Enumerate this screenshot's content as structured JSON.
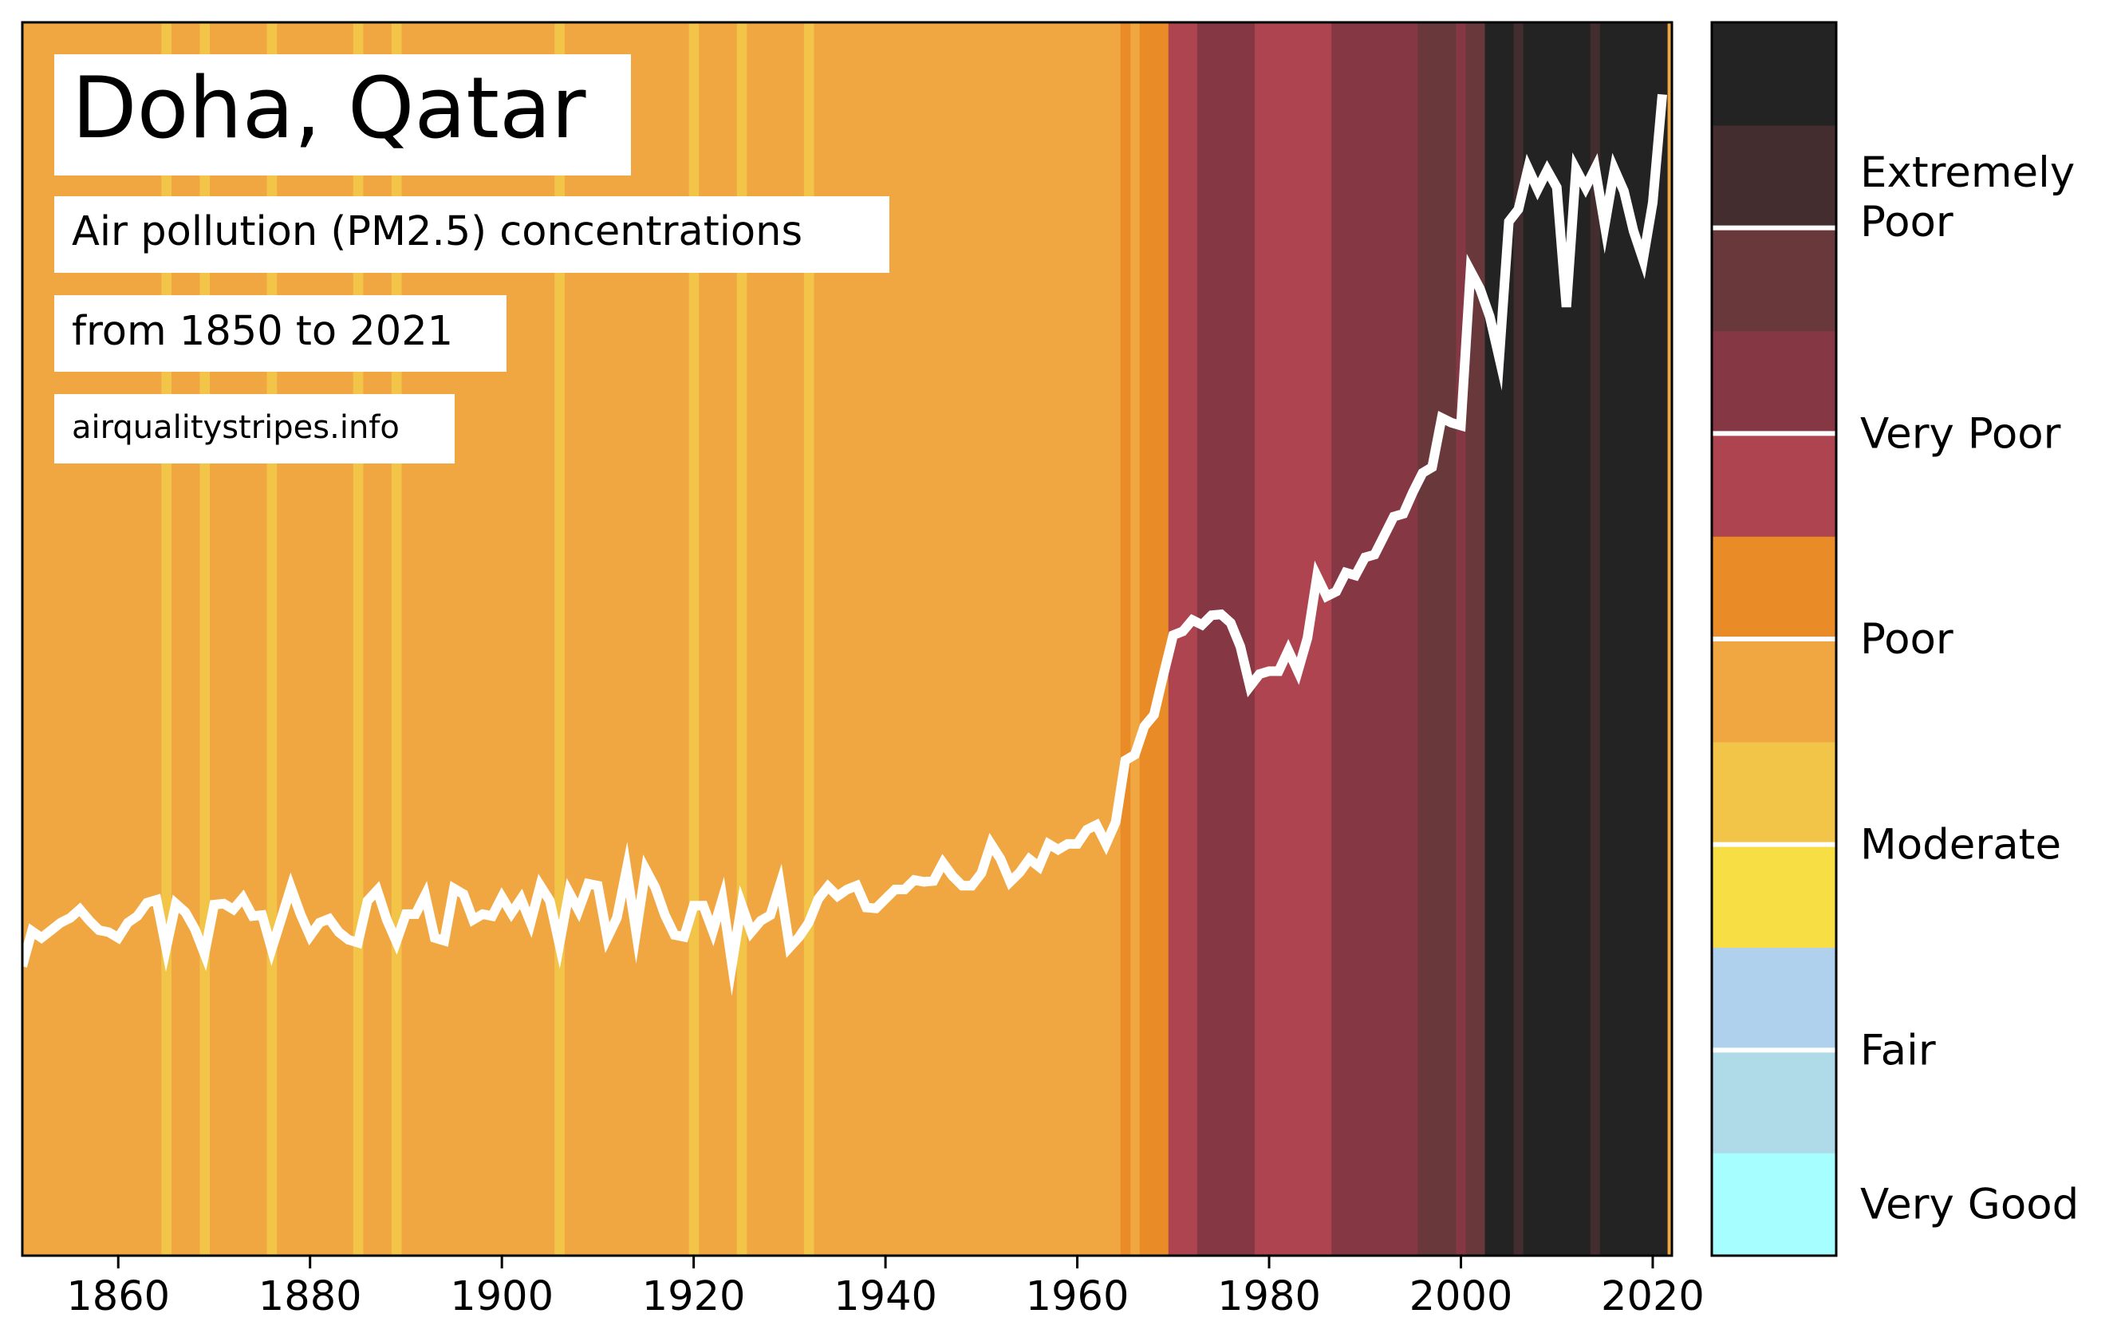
{
  "chart_data": {
    "type": "line",
    "title": "Doha, Qatar",
    "subtitle_line1": "Air pollution (PM2.5) concentrations",
    "subtitle_line2": "from 1850 to 2021",
    "source": "airqualitystripes.info",
    "xlim": [
      1850,
      2022
    ],
    "ylim": [
      0,
      130
    ],
    "x_ticks": [
      1860,
      1880,
      1900,
      1920,
      1940,
      1960,
      1980,
      2000,
      2020
    ],
    "y_axis_visible": false,
    "grid": false,
    "line_color": "#ffffff",
    "stripe_colors": {
      "moderate_high": "#f2c548",
      "poor_low": "#f0a742",
      "poor_high": "#e98b27",
      "very_poor_low": "#ad4450",
      "very_poor_high": "#853844",
      "extremely_poor_low": "#68383b",
      "extremely_poor_mid": "#432d2f",
      "extremely_poor_high": "#232323"
    },
    "stripes_default": "poor_low",
    "stripes": [
      {
        "year": 1865,
        "category": "moderate_high"
      },
      {
        "year": 1869,
        "category": "moderate_high"
      },
      {
        "year": 1876,
        "category": "moderate_high"
      },
      {
        "year": 1885,
        "category": "moderate_high"
      },
      {
        "year": 1889,
        "category": "moderate_high"
      },
      {
        "year": 1906,
        "category": "moderate_high"
      },
      {
        "year": 1920,
        "category": "moderate_high"
      },
      {
        "year": 1925,
        "category": "moderate_high"
      },
      {
        "year": 1932,
        "category": "moderate_high"
      },
      {
        "year": 1965,
        "category": "poor_high"
      },
      {
        "year": 1967,
        "category": "poor_high"
      },
      {
        "year": 1968,
        "category": "poor_high"
      },
      {
        "year": 1969,
        "category": "poor_high"
      },
      {
        "year": 1970,
        "category": "very_poor_low"
      },
      {
        "year": 1971,
        "category": "very_poor_low"
      },
      {
        "year": 1972,
        "category": "very_poor_low"
      },
      {
        "year": 1973,
        "category": "very_poor_high"
      },
      {
        "year": 1974,
        "category": "very_poor_high"
      },
      {
        "year": 1975,
        "category": "very_poor_high"
      },
      {
        "year": 1976,
        "category": "very_poor_high"
      },
      {
        "year": 1977,
        "category": "very_poor_high"
      },
      {
        "year": 1978,
        "category": "very_poor_high"
      },
      {
        "year": 1979,
        "category": "very_poor_low"
      },
      {
        "year": 1980,
        "category": "very_poor_low"
      },
      {
        "year": 1981,
        "category": "very_poor_low"
      },
      {
        "year": 1982,
        "category": "very_poor_low"
      },
      {
        "year": 1983,
        "category": "very_poor_low"
      },
      {
        "year": 1984,
        "category": "very_poor_low"
      },
      {
        "year": 1985,
        "category": "very_poor_low"
      },
      {
        "year": 1986,
        "category": "very_poor_low"
      },
      {
        "year": 1987,
        "category": "very_poor_high"
      },
      {
        "year": 1988,
        "category": "very_poor_high"
      },
      {
        "year": 1989,
        "category": "very_poor_high"
      },
      {
        "year": 1990,
        "category": "very_poor_high"
      },
      {
        "year": 1991,
        "category": "very_poor_high"
      },
      {
        "year": 1992,
        "category": "very_poor_high"
      },
      {
        "year": 1993,
        "category": "very_poor_high"
      },
      {
        "year": 1994,
        "category": "very_poor_high"
      },
      {
        "year": 1995,
        "category": "very_poor_high"
      },
      {
        "year": 1996,
        "category": "extremely_poor_low"
      },
      {
        "year": 1997,
        "category": "extremely_poor_low"
      },
      {
        "year": 1998,
        "category": "extremely_poor_low"
      },
      {
        "year": 1999,
        "category": "extremely_poor_low"
      },
      {
        "year": 2000,
        "category": "very_poor_high"
      },
      {
        "year": 2001,
        "category": "extremely_poor_low"
      },
      {
        "year": 2002,
        "category": "extremely_poor_low"
      },
      {
        "year": 2003,
        "category": "extremely_poor_high"
      },
      {
        "year": 2004,
        "category": "extremely_poor_high"
      },
      {
        "year": 2005,
        "category": "extremely_poor_high"
      },
      {
        "year": 2006,
        "category": "extremely_poor_mid"
      },
      {
        "year": 2007,
        "category": "extremely_poor_high"
      },
      {
        "year": 2008,
        "category": "extremely_poor_high"
      },
      {
        "year": 2009,
        "category": "extremely_poor_high"
      },
      {
        "year": 2010,
        "category": "extremely_poor_high"
      },
      {
        "year": 2011,
        "category": "extremely_poor_high"
      },
      {
        "year": 2012,
        "category": "extremely_poor_high"
      },
      {
        "year": 2013,
        "category": "extremely_poor_high"
      },
      {
        "year": 2014,
        "category": "extremely_poor_mid"
      },
      {
        "year": 2015,
        "category": "extremely_poor_high"
      },
      {
        "year": 2016,
        "category": "extremely_poor_high"
      },
      {
        "year": 2017,
        "category": "extremely_poor_high"
      },
      {
        "year": 2018,
        "category": "extremely_poor_high"
      },
      {
        "year": 2019,
        "category": "extremely_poor_high"
      },
      {
        "year": 2020,
        "category": "extremely_poor_high"
      },
      {
        "year": 2021,
        "category": "extremely_poor_high"
      }
    ],
    "series": [
      {
        "x": [
          1850,
          1851,
          1852,
          1853,
          1854,
          1855,
          1856,
          1857,
          1858,
          1859,
          1860,
          1861,
          1862,
          1863,
          1864,
          1865,
          1866,
          1867,
          1868,
          1869,
          1870,
          1871,
          1872,
          1873,
          1874,
          1875,
          1876,
          1877,
          1878,
          1879,
          1880,
          1881,
          1882,
          1883,
          1884,
          1885,
          1886,
          1887,
          1888,
          1889,
          1890,
          1891,
          1892,
          1893,
          1894,
          1895,
          1896,
          1897,
          1898,
          1899,
          1900,
          1901,
          1902,
          1903,
          1904,
          1905,
          1906,
          1907,
          1908,
          1909,
          1910,
          1911,
          1912,
          1913,
          1914,
          1915,
          1916,
          1917,
          1918,
          1919,
          1920,
          1921,
          1922,
          1923,
          1924,
          1925,
          1926,
          1927,
          1928,
          1929,
          1930,
          1931,
          1932,
          1933,
          1934,
          1935,
          1936,
          1937,
          1938,
          1939,
          1940,
          1941,
          1942,
          1943,
          1944,
          1945,
          1946,
          1947,
          1948,
          1949,
          1950,
          1951,
          1952,
          1953,
          1954,
          1955,
          1956,
          1957,
          1958,
          1959,
          1960,
          1961,
          1962,
          1963,
          1964,
          1965,
          1966,
          1967,
          1968,
          1969,
          1970,
          1971,
          1972,
          1973,
          1974,
          1975,
          1976,
          1977,
          1978,
          1979,
          1980,
          1981,
          1982,
          1983,
          1984,
          1985,
          1986,
          1987,
          1988,
          1989,
          1990,
          1991,
          1992,
          1993,
          1994,
          1995,
          1996,
          1997,
          1998,
          1999,
          2000,
          2001,
          2002,
          2003,
          2004,
          2005,
          2006,
          2007,
          2008,
          2009,
          2010,
          2011,
          2012,
          2013,
          2014,
          2015,
          2016,
          2017,
          2018,
          2019,
          2020,
          2021
        ],
        "y": [
          30.5,
          34.2,
          33.5,
          34.3,
          35.1,
          35.6,
          36.5,
          35.3,
          34.3,
          34.1,
          33.5,
          35.1,
          35.8,
          37.2,
          37.5,
          32.4,
          37.1,
          36.2,
          34.4,
          31.8,
          37.0,
          37.1,
          36.5,
          37.7,
          35.8,
          35.9,
          32.3,
          35.5,
          38.8,
          36.0,
          33.7,
          35.1,
          35.5,
          34.1,
          33.3,
          33.0,
          37.4,
          38.5,
          35.4,
          33.1,
          36.0,
          36.0,
          38.0,
          33.5,
          33.2,
          38.7,
          38.1,
          35.4,
          36.0,
          35.8,
          37.8,
          36.1,
          37.6,
          35.1,
          39.0,
          37.4,
          32.8,
          38.3,
          36.4,
          39.2,
          39.0,
          33.5,
          35.6,
          40.7,
          34.1,
          40.7,
          38.8,
          35.9,
          33.8,
          33.6,
          36.9,
          36.9,
          34.2,
          37.6,
          30.7,
          37.0,
          34.1,
          35.3,
          35.9,
          39.1,
          32.5,
          33.6,
          35.1,
          37.6,
          38.9,
          37.9,
          38.6,
          39.0,
          36.7,
          36.6,
          37.6,
          38.6,
          38.6,
          39.6,
          39.4,
          39.5,
          41.4,
          40.0,
          39.0,
          39.0,
          40.3,
          43.4,
          41.8,
          39.4,
          40.4,
          41.8,
          41.0,
          43.4,
          42.8,
          43.4,
          43.4,
          44.9,
          45.4,
          43.4,
          45.7,
          52.2,
          52.8,
          55.8,
          57.0,
          61.3,
          65.4,
          65.8,
          67.0,
          66.5,
          67.5,
          67.6,
          66.7,
          64.2,
          60.0,
          61.3,
          61.6,
          61.6,
          63.8,
          61.6,
          65.1,
          71.6,
          69.5,
          70.0,
          72.0,
          71.7,
          73.6,
          73.9,
          75.9,
          77.9,
          78.2,
          80.5,
          82.5,
          83.1,
          88.3,
          87.8,
          87.5,
          103.8,
          101.9,
          99.0,
          94.6,
          109.0,
          110.3,
          114.6,
          112.4,
          114.4,
          112.6,
          100.0,
          114.5,
          112.6,
          114.6,
          108.6,
          114.5,
          112.2,
          108.0,
          105.0,
          111.0,
          122.4
        ],
        "stroke_width": 12
      }
    ],
    "colorbar": {
      "segments": [
        {
          "color": "#a6feff"
        },
        {
          "color": "#afdbe9"
        },
        {
          "color": "#b0d1ee"
        },
        {
          "color": "#f6de44"
        },
        {
          "color": "#f2c548"
        },
        {
          "color": "#f0a742"
        },
        {
          "color": "#e98b27"
        },
        {
          "color": "#ad4450"
        },
        {
          "color": "#853844"
        },
        {
          "color": "#68383b"
        },
        {
          "color": "#432d2f"
        },
        {
          "color": "#232323"
        }
      ],
      "separators_after": [
        1,
        3,
        5,
        7,
        9
      ],
      "labels": [
        {
          "text": [
            "Very Good"
          ],
          "segment": 0
        },
        {
          "text": [
            "Fair"
          ],
          "segment": 1.5
        },
        {
          "text": [
            "Moderate"
          ],
          "segment": 3.5
        },
        {
          "text": [
            "Poor"
          ],
          "segment": 5.5
        },
        {
          "text": [
            "Very Poor"
          ],
          "segment": 7.5
        },
        {
          "text": [
            "Extremely",
            "Poor"
          ],
          "segment": 9.8
        }
      ]
    }
  }
}
